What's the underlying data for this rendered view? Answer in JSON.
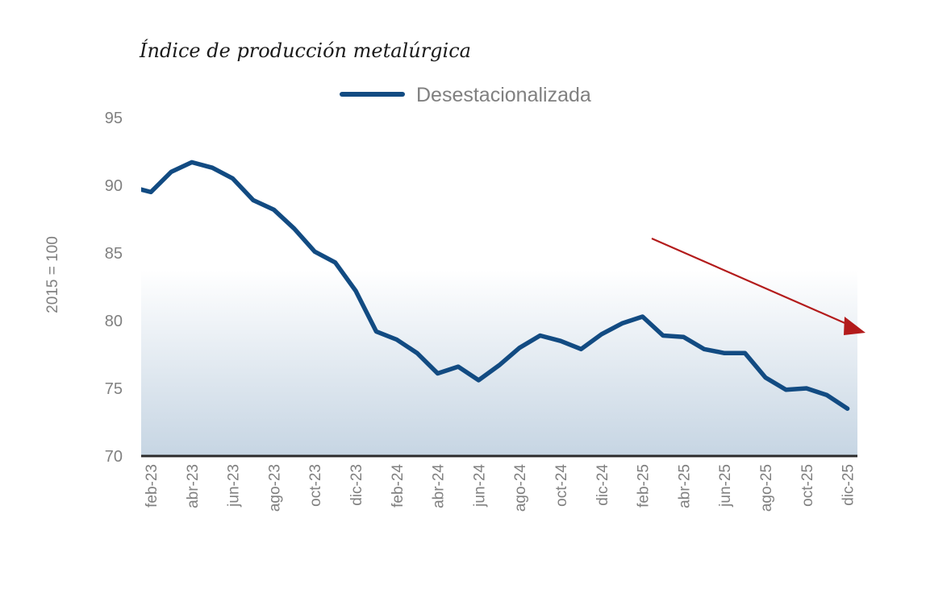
{
  "chart_data": {
    "type": "line",
    "title": "Índice de producción metalúrgica",
    "ylabel": "2015 = 100",
    "xlabel": "",
    "ylim": [
      70,
      95
    ],
    "yticks": [
      "70",
      "75",
      "80",
      "85",
      "90",
      "95"
    ],
    "grid": false,
    "legend_position": "top-center",
    "categories": [
      "ene-23",
      "feb-23",
      "mar-23",
      "abr-23",
      "may-23",
      "jun-23",
      "jul-23",
      "ago-23",
      "sep-23",
      "oct-23",
      "nov-23",
      "dic-23",
      "ene-24",
      "feb-24",
      "mar-24",
      "abr-24",
      "may-24",
      "jun-24",
      "jul-24",
      "ago-24",
      "sep-24",
      "oct-24",
      "nov-24",
      "dic-24",
      "ene-25",
      "feb-25",
      "mar-25",
      "abr-25",
      "may-25",
      "jun-25",
      "jul-25",
      "ago-25",
      "sep-25",
      "oct-25",
      "nov-25",
      "dic-25"
    ],
    "xtick_labels": [
      "feb-23",
      "abr-23",
      "jun-23",
      "ago-23",
      "oct-23",
      "dic-23",
      "feb-24",
      "abr-24",
      "jun-24",
      "ago-24",
      "oct-24",
      "dic-24",
      "feb-25",
      "abr-25",
      "jun-25",
      "ago-25",
      "oct-25",
      "dic-25"
    ],
    "series": [
      {
        "name": "Desestacionalizada",
        "color": "#124b82",
        "values": [
          89.9,
          89.5,
          91.0,
          91.7,
          91.3,
          90.5,
          88.9,
          88.2,
          86.8,
          85.1,
          84.3,
          82.2,
          79.2,
          78.6,
          77.6,
          76.1,
          76.6,
          75.6,
          76.7,
          78.0,
          78.9,
          78.5,
          77.9,
          79.0,
          79.8,
          80.3,
          78.9,
          78.8,
          77.9,
          77.6,
          77.6,
          75.8,
          74.9,
          75.0,
          74.5,
          73.5
        ]
      }
    ],
    "annotations": [
      {
        "type": "arrow",
        "direction": "down-right",
        "color": "#b31b1b"
      }
    ],
    "background_gradient": [
      "#ffffff",
      "#c6d5e3"
    ]
  }
}
